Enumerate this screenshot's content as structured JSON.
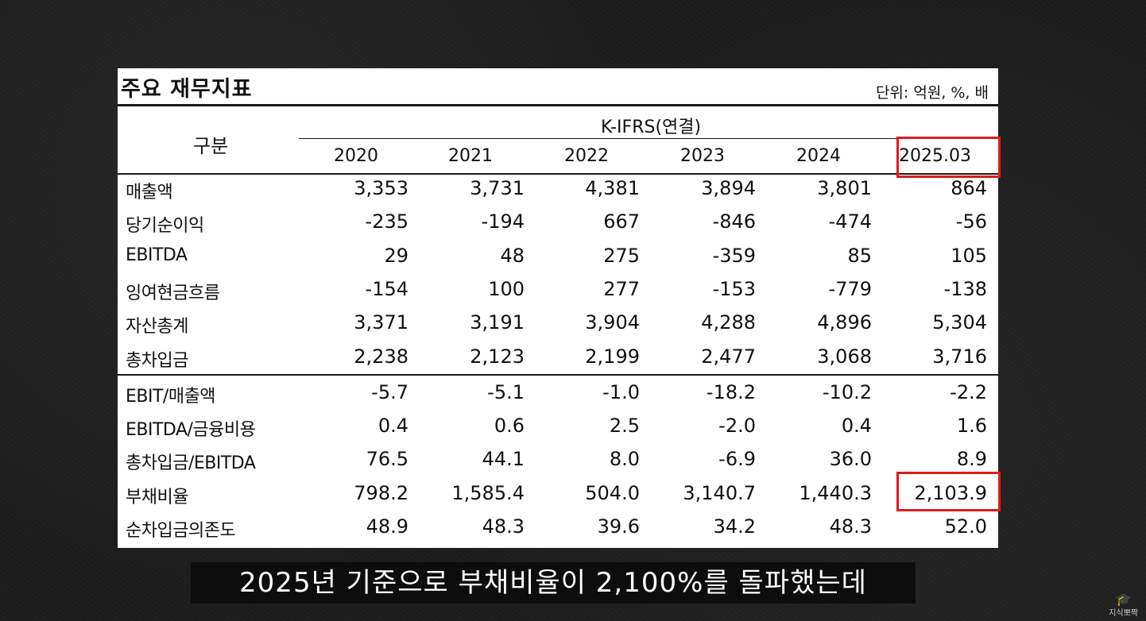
{
  "table": {
    "title": "주요 재무지표",
    "unit": "단위: 억원, %, 배",
    "header_group": "K-IFRS(연결)",
    "row_header": "구분",
    "years": [
      "2020",
      "2021",
      "2022",
      "2023",
      "2024",
      "2025.03"
    ],
    "rows": [
      {
        "label": "매출액",
        "values": [
          "3,353",
          "3,731",
          "4,381",
          "3,894",
          "3,801",
          "864"
        ]
      },
      {
        "label": "당기순이익",
        "values": [
          "-235",
          "-194",
          "667",
          "-846",
          "-474",
          "-56"
        ]
      },
      {
        "label": "EBITDA",
        "values": [
          "29",
          "48",
          "275",
          "-359",
          "85",
          "105"
        ]
      },
      {
        "label": "잉여현금흐름",
        "values": [
          "-154",
          "100",
          "277",
          "-153",
          "-779",
          "-138"
        ]
      },
      {
        "label": "자산총계",
        "values": [
          "3,371",
          "3,191",
          "3,904",
          "4,288",
          "4,896",
          "5,304"
        ]
      },
      {
        "label": "총차입금",
        "values": [
          "2,238",
          "2,123",
          "2,199",
          "2,477",
          "3,068",
          "3,716"
        ]
      },
      {
        "label": "EBIT/매출액",
        "values": [
          "-5.7",
          "-5.1",
          "-1.0",
          "-18.2",
          "-10.2",
          "-2.2"
        ]
      },
      {
        "label": "EBITDA/금융비용",
        "values": [
          "0.4",
          "0.6",
          "2.5",
          "-2.0",
          "0.4",
          "1.6"
        ]
      },
      {
        "label": "총차입금/EBITDA",
        "values": [
          "76.5",
          "44.1",
          "8.0",
          "-6.9",
          "36.0",
          "8.9"
        ]
      },
      {
        "label": "부채비율",
        "values": [
          "798.2",
          "1,585.4",
          "504.0",
          "3,140.7",
          "1,440.3",
          "2,103.9"
        ]
      },
      {
        "label": "순차입금의존도",
        "values": [
          "48.9",
          "48.3",
          "39.6",
          "34.2",
          "48.3",
          "52.0"
        ]
      }
    ]
  },
  "highlight_color": "#e01b1b",
  "subtitle": "2025년 기준으로 부채비율이 2,100%를 돌파했는데",
  "watermark": {
    "icon": "graduation-cap-icon",
    "text": "지식뽀짝"
  }
}
